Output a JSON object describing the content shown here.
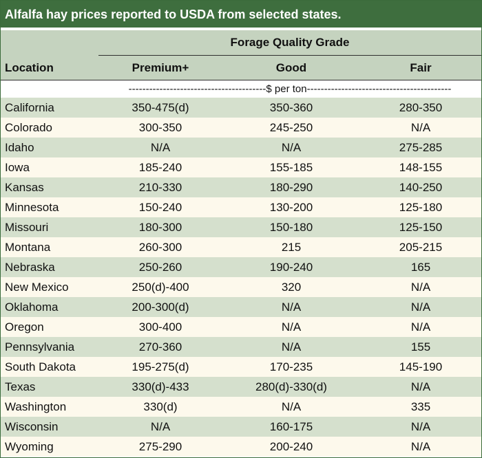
{
  "title": "Alfalfa hay prices reported to USDA from selected states.",
  "header": {
    "group_label": "Forage Quality Grade",
    "location": "Location",
    "premium": "Premium+",
    "good": "Good",
    "fair": "Fair"
  },
  "unit_label": "----------------------------------------$ per ton------------------------------------------",
  "rows": [
    {
      "location": "California",
      "premium": "350-475(d)",
      "good": "350-360",
      "fair": "280-350"
    },
    {
      "location": "Colorado",
      "premium": "300-350",
      "good": "245-250",
      "fair": "N/A"
    },
    {
      "location": "Idaho",
      "premium": "N/A",
      "good": "N/A",
      "fair": "275-285"
    },
    {
      "location": "Iowa",
      "premium": "185-240",
      "good": "155-185",
      "fair": "148-155"
    },
    {
      "location": "Kansas",
      "premium": "210-330",
      "good": "180-290",
      "fair": "140-250"
    },
    {
      "location": "Minnesota",
      "premium": "150-240",
      "good": "130-200",
      "fair": "125-180"
    },
    {
      "location": "Missouri",
      "premium": "180-300",
      "good": "150-180",
      "fair": "125-150"
    },
    {
      "location": "Montana",
      "premium": "260-300",
      "good": "215",
      "fair": "205-215"
    },
    {
      "location": "Nebraska",
      "premium": "250-260",
      "good": "190-240",
      "fair": "165"
    },
    {
      "location": "New Mexico",
      "premium": "250(d)-400",
      "good": "320",
      "fair": "N/A"
    },
    {
      "location": "Oklahoma",
      "premium": "200-300(d)",
      "good": "N/A",
      "fair": "N/A"
    },
    {
      "location": "Oregon",
      "premium": "300-400",
      "good": "N/A",
      "fair": "N/A"
    },
    {
      "location": "Pennsylvania",
      "premium": "270-360",
      "good": "N/A",
      "fair": "155"
    },
    {
      "location": "South Dakota",
      "premium": "195-275(d)",
      "good": "170-235",
      "fair": "145-190"
    },
    {
      "location": "Texas",
      "premium": "330(d)-433",
      "good": "280(d)-330(d)",
      "fair": "N/A"
    },
    {
      "location": "Washington",
      "premium": "330(d)",
      "good": "N/A",
      "fair": "335"
    },
    {
      "location": "Wisconsin",
      "premium": "N/A",
      "good": "160-175",
      "fair": "N/A"
    },
    {
      "location": "Wyoming",
      "premium": "275-290",
      "good": "200-240",
      "fair": "N/A"
    }
  ],
  "colors": {
    "title_bg": "#3e6e3e",
    "header_bg": "#c5d3bf",
    "row_shade": "#d5e0cd",
    "row_plain": "#fdf9ec"
  }
}
